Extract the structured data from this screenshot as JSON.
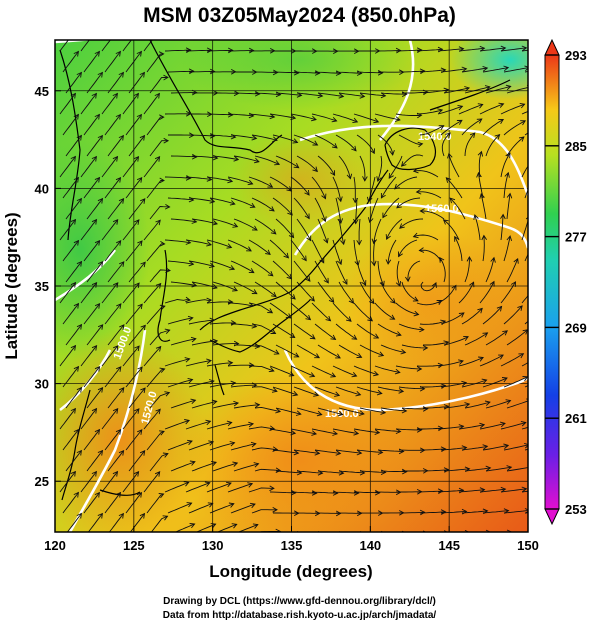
{
  "title": "MSM 03Z05May2024 (850.0hPa)",
  "x_axis": {
    "label": "Longitude (degrees)",
    "range": [
      120,
      150
    ],
    "ticks": [
      "120",
      "125",
      "130",
      "135",
      "140",
      "145",
      "150"
    ]
  },
  "y_axis": {
    "label": "Latitude  (degrees)",
    "range": [
      22.4,
      47.6
    ],
    "ticks": [
      "25",
      "30",
      "35",
      "40",
      "45"
    ]
  },
  "colorbar": {
    "range": [
      253,
      293
    ],
    "ticks": [
      "293",
      "285",
      "277",
      "269",
      "261",
      "253"
    ]
  },
  "contour_labels": [
    "1500.0",
    "1520.0",
    "1500.0",
    "1520.0",
    "1540.0",
    "1560.0"
  ],
  "footer": {
    "line1": "Drawing by DCL (https://www.gfd-dennou.org/library/dcl/)",
    "line2": "Data from http://database.rish.kyoto-u.ac.jp/arch/jmadata/"
  }
}
